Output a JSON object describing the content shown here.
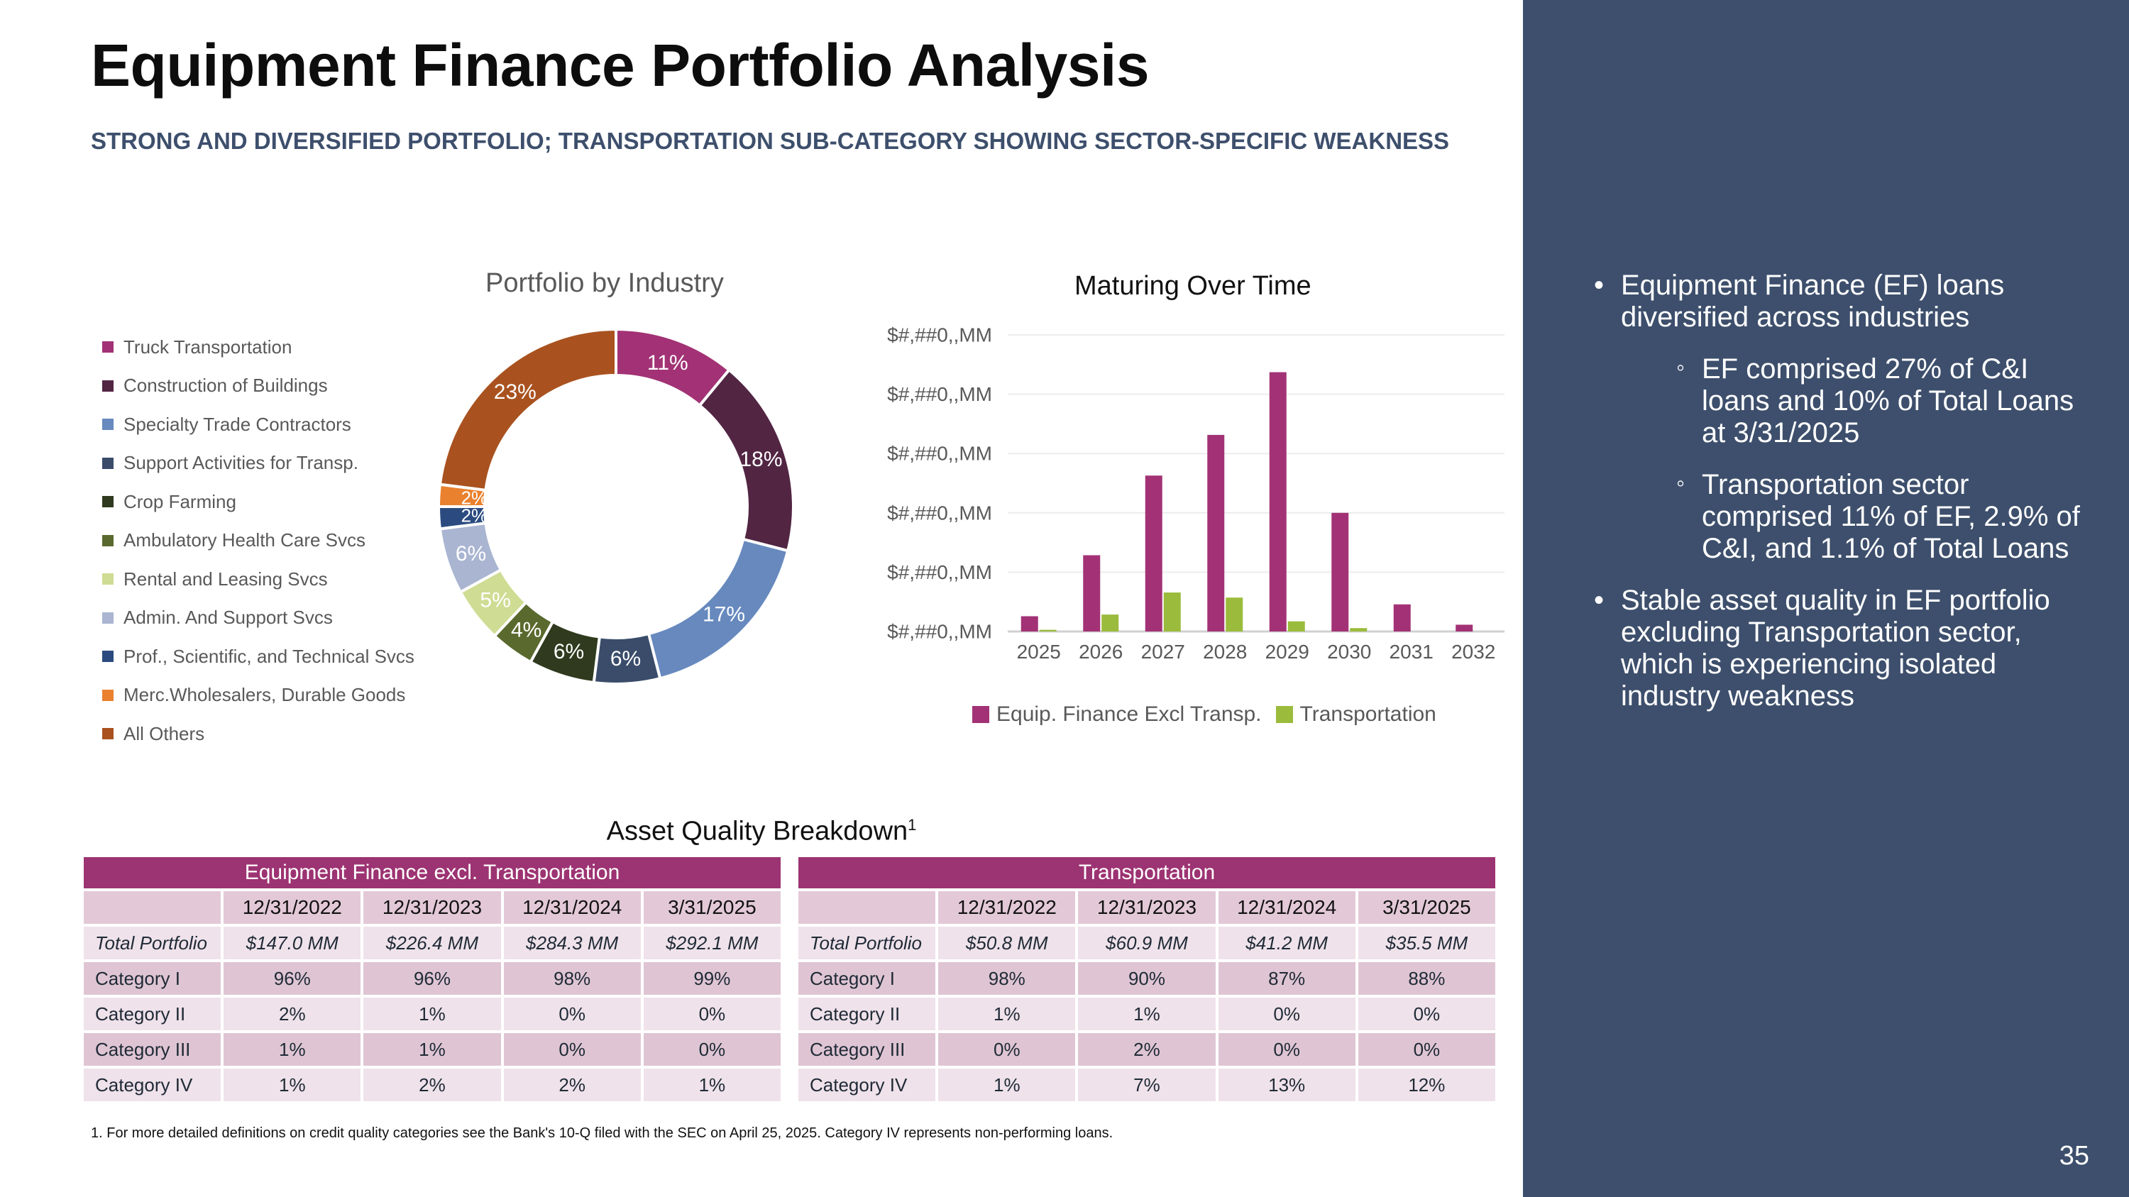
{
  "title": "Equipment Finance Portfolio Analysis",
  "subtitle": "STRONG AND DIVERSIFIED PORTFOLIO; TRANSPORTATION SUB-CATEGORY SHOWING SECTOR-SPECIFIC WEAKNESS",
  "chart_data": [
    {
      "type": "pie",
      "title": "Portfolio by Industry",
      "donut": true,
      "categories": [
        "Truck Transportation",
        "Construction of Buildings",
        "Specialty Trade Contractors",
        "Support Activities for Transp.",
        "Crop Farming",
        "Ambulatory Health Care Svcs",
        "Rental and Leasing Svcs",
        "Admin. And Support Svcs",
        "Prof., Scientific, and Technical Svcs",
        "Merc.Wholesalers, Durable Goods",
        "All Others"
      ],
      "values": [
        11,
        18,
        17,
        6,
        6,
        4,
        5,
        6,
        2,
        2,
        23
      ],
      "labels": [
        "11%",
        "18%",
        "17%",
        "6%",
        "6%",
        "4%",
        "5%",
        "6%",
        "2%",
        "2%",
        "23%"
      ],
      "colors": [
        "#a23275",
        "#522543",
        "#6789be",
        "#3a4c6a",
        "#2f3a1e",
        "#5a6a2e",
        "#cfdc93",
        "#a9b5d1",
        "#2b4b80",
        "#e9812e",
        "#a9521f"
      ],
      "legend_position": "left"
    },
    {
      "type": "bar",
      "title": "Maturing Over Time",
      "categories": [
        "2025",
        "2026",
        "2027",
        "2028",
        "2029",
        "2030",
        "2031",
        "2032"
      ],
      "series": [
        {
          "name": "Equip. Finance Excl Transp.",
          "color": "#a23275",
          "values": [
            9,
            45,
            92,
            116,
            153,
            70,
            16,
            4
          ]
        },
        {
          "name": "Transportation",
          "color": "#9bbb3c",
          "values": [
            1,
            10,
            23,
            20,
            6,
            2,
            0,
            0
          ]
        }
      ],
      "y_tick_labels": [
        "$#,##0,,MM",
        "$#,##0,,MM",
        "$#,##0,,MM",
        "$#,##0,,MM",
        "$#,##0,,MM",
        "$#,##0,,MM"
      ],
      "ylim": [
        0,
        175
      ],
      "grid": true,
      "legend_position": "bottom"
    }
  ],
  "asset_quality": {
    "title": "Asset Quality Breakdown",
    "title_sup": "1",
    "ef": {
      "banner": "Equipment Finance excl. Transportation",
      "headers": [
        "12/31/2022",
        "12/31/2023",
        "12/31/2024",
        "3/31/2025"
      ],
      "rows": [
        {
          "label": "Total Portfolio",
          "values": [
            "$147.0 MM",
            "$226.4 MM",
            "$284.3 MM",
            "$292.1 MM"
          ]
        },
        {
          "label": "Category I",
          "values": [
            "96%",
            "96%",
            "98%",
            "99%"
          ]
        },
        {
          "label": "Category II",
          "values": [
            "2%",
            "1%",
            "0%",
            "0%"
          ]
        },
        {
          "label": "Category III",
          "values": [
            "1%",
            "1%",
            "0%",
            "0%"
          ]
        },
        {
          "label": "Category IV",
          "values": [
            "1%",
            "2%",
            "2%",
            "1%"
          ]
        }
      ]
    },
    "tr": {
      "banner": "Transportation",
      "headers": [
        "12/31/2022",
        "12/31/2023",
        "12/31/2024",
        "3/31/2025"
      ],
      "rows": [
        {
          "label": "Total Portfolio",
          "values": [
            "$50.8 MM",
            "$60.9 MM",
            "$41.2 MM",
            "$35.5 MM"
          ]
        },
        {
          "label": "Category I",
          "values": [
            "98%",
            "90%",
            "87%",
            "88%"
          ]
        },
        {
          "label": "Category II",
          "values": [
            "1%",
            "1%",
            "0%",
            "0%"
          ]
        },
        {
          "label": "Category III",
          "values": [
            "0%",
            "2%",
            "0%",
            "0%"
          ]
        },
        {
          "label": "Category IV",
          "values": [
            "1%",
            "7%",
            "13%",
            "12%"
          ]
        }
      ]
    }
  },
  "footnote": "1.  For more detailed definitions on credit quality categories see the Bank's 10-Q filed with the SEC on April 25, 2025. Category IV represents non-performing loans.",
  "bullets": [
    {
      "level": 1,
      "text": "Equipment Finance (EF) loans diversified across industries"
    },
    {
      "level": 2,
      "text": "EF comprised 27% of C&I loans and 10% of Total Loans at 3/31/2025"
    },
    {
      "level": 2,
      "text": "Transportation sector comprised 11% of EF, 2.9% of C&I, and 1.1% of Total Loans"
    },
    {
      "level": 1,
      "text": "Stable asset quality in EF portfolio excluding Transportation sector, which is experiencing isolated industry weakness"
    }
  ],
  "bullet_glyphs": {
    "level1": "•",
    "level2": "◦"
  },
  "page_number": "35"
}
